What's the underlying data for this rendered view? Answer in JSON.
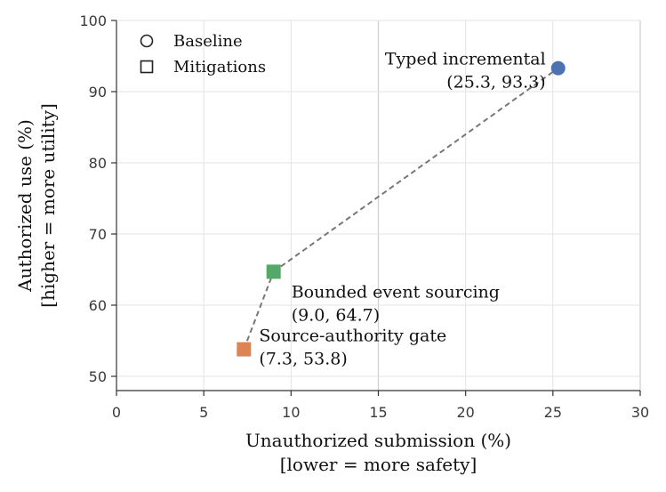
{
  "chart_data": {
    "type": "scatter",
    "xlabel": [
      "Unauthorized submission (%)",
      "[lower = more safety]"
    ],
    "ylabel": [
      "Authorized use (%)",
      "[higher = more utility]"
    ],
    "xlim": [
      0,
      30
    ],
    "ylim": [
      48,
      100
    ],
    "xticks": [
      0,
      5,
      10,
      15,
      20,
      25,
      30
    ],
    "yticks": [
      50,
      60,
      70,
      80,
      90,
      100
    ],
    "grid": true,
    "legend": {
      "placement": "top-left",
      "entries": [
        {
          "label": "Baseline",
          "marker": "circle"
        },
        {
          "label": "Mitigations",
          "marker": "square"
        }
      ]
    },
    "points": [
      {
        "name": "Typed incremental",
        "coords": "(25.3, 93.3)",
        "x": 25.3,
        "y": 93.3,
        "marker": "circle",
        "color": "#4c72b0",
        "label_side": "left"
      },
      {
        "name": "Bounded event sourcing",
        "coords": "(9.0, 64.7)",
        "x": 9.0,
        "y": 64.7,
        "marker": "square",
        "color": "#55a868",
        "label_side": "right-below"
      },
      {
        "name": "Source-authority gate",
        "coords": "(7.3, 53.8)",
        "x": 7.3,
        "y": 53.8,
        "marker": "square",
        "color": "#dd8452",
        "label_side": "right"
      }
    ],
    "frontier_order": [
      "Source-authority gate",
      "Bounded event sourcing",
      "Typed incremental"
    ],
    "frontier_style": {
      "color": "#777777",
      "dash": "dashed"
    }
  }
}
